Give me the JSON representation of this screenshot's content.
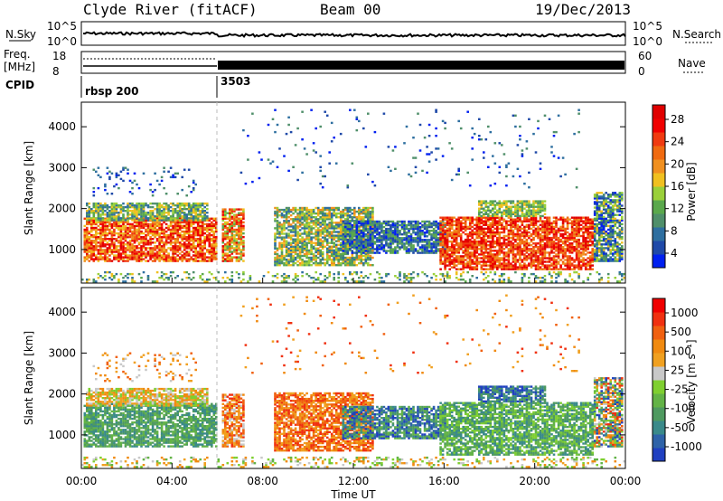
{
  "header": {
    "title": "Clyde River (fitACF)",
    "beam": "Beam 00",
    "date": "19/Dec/2013"
  },
  "top_panels": {
    "nsky_label": "N.Sky",
    "nsky_ticks": [
      "10^5",
      "10^0"
    ],
    "nsearch_label": "N.Search",
    "freq_label_1": "Freq.",
    "freq_label_2": "[MHz]",
    "freq_ticks": [
      "18",
      "8"
    ],
    "nave_label": "Nave",
    "nave_ticks": [
      "60",
      "0"
    ],
    "cpid_label": "CPID",
    "cpid_segments": [
      {
        "label": "rbsp 200",
        "start_hour": 0
      },
      {
        "label": "3503",
        "start_hour": 6
      }
    ]
  },
  "colors": {
    "power": [
      "#0020f0",
      "#1f49a8",
      "#2e6fa0",
      "#4f8f6a",
      "#5aa84c",
      "#9ad03a",
      "#f0c020",
      "#f09020",
      "#f06a10",
      "#f03a10",
      "#f00000",
      "#e00000"
    ],
    "velocity": [
      "#2040c0",
      "#2f63a8",
      "#3a8a8a",
      "#4f9a60",
      "#63b347",
      "#7fcf30",
      "#c8c8c8",
      "#f0a020",
      "#f08a10",
      "#f06010",
      "#f03010",
      "#f00000"
    ]
  },
  "chart_data": [
    {
      "type": "heatmap",
      "name": "power",
      "ylabel": "Slant Range [km]",
      "xlabel": "Time UT",
      "x_range_hours": [
        0,
        24
      ],
      "x_ticks": [
        "00:00",
        "04:00",
        "08:00",
        "12:00",
        "16:00",
        "20:00",
        "00:00"
      ],
      "ylim": [
        180,
        4600
      ],
      "y_ticks": [
        1000,
        2000,
        3000,
        4000
      ],
      "colorbar_label": "Power [dB]",
      "colorbar_ticks": [
        "4",
        "8",
        "12",
        "16",
        "20",
        "24",
        "28"
      ],
      "colorbar_range": [
        0,
        30
      ]
    },
    {
      "type": "heatmap",
      "name": "velocity",
      "ylabel": "Slant Range [km]",
      "xlabel": "Time UT",
      "x_range_hours": [
        0,
        24
      ],
      "x_ticks": [
        "00:00",
        "04:00",
        "08:00",
        "12:00",
        "16:00",
        "20:00",
        "00:00"
      ],
      "ylim": [
        180,
        4600
      ],
      "y_ticks": [
        1000,
        2000,
        3000,
        4000
      ],
      "colorbar_label": "Velocity [m s⁻¹]",
      "colorbar_ticks": [
        "1000",
        "500",
        "100",
        "25",
        "-25",
        "-100",
        "-500",
        "-1000"
      ]
    }
  ]
}
